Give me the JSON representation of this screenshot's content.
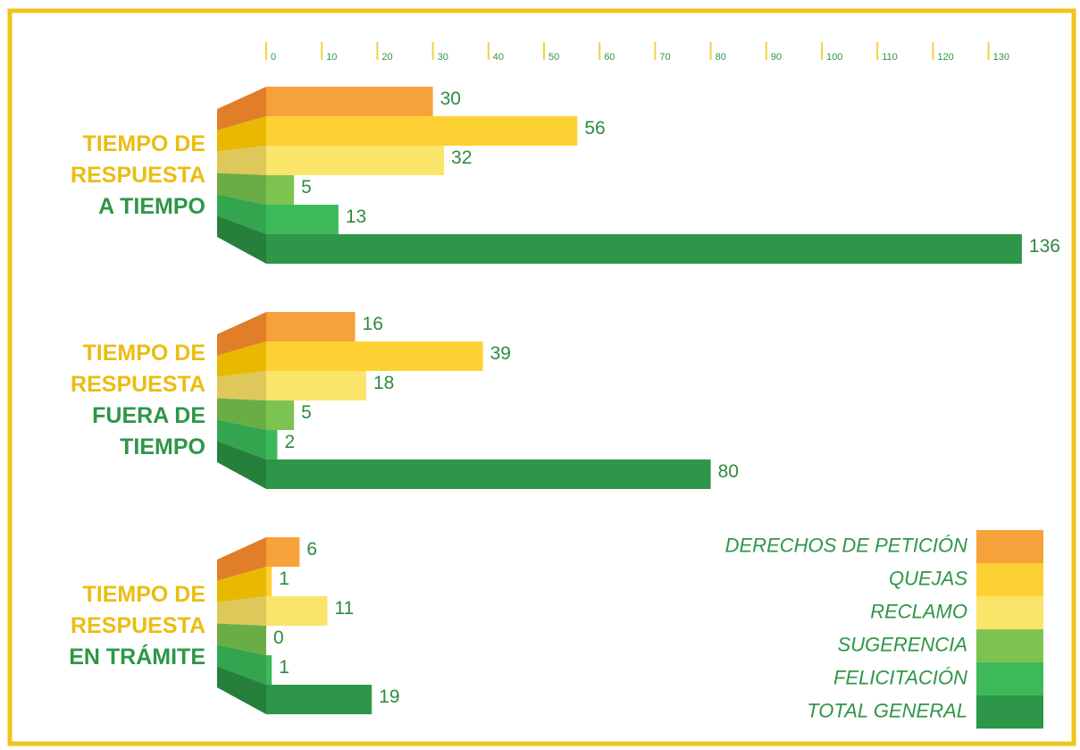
{
  "chart_data": {
    "type": "bar",
    "orientation": "horizontal",
    "category_prefix": "TIEMPO DE RESPUESTA",
    "categories": [
      "A TIEMPO",
      "FUERA DE TIEMPO",
      "EN TRÁMITE"
    ],
    "series": [
      {
        "name": "DERECHOS DE PETICIÓN",
        "color": "#f7a13a",
        "side_color": "#e07e2a",
        "values": [
          30,
          16,
          6
        ]
      },
      {
        "name": "QUEJAS",
        "color": "#fdd133",
        "side_color": "#e9b800",
        "values": [
          56,
          39,
          1
        ]
      },
      {
        "name": "RECLAMO",
        "color": "#fbe46a",
        "side_color": "#dfc85a",
        "values": [
          32,
          18,
          11
        ]
      },
      {
        "name": "SUGERENCIA",
        "color": "#7cc352",
        "side_color": "#6aad45",
        "values": [
          5,
          5,
          0
        ]
      },
      {
        "name": "FELICITACIÓN",
        "color": "#3db95a",
        "side_color": "#34a54f",
        "values": [
          13,
          2,
          1
        ]
      },
      {
        "name": "TOTAL GENERAL",
        "color": "#2e9648",
        "side_color": "#277f3c",
        "values": [
          136,
          80,
          19
        ]
      }
    ],
    "xlim": [
      0,
      140
    ],
    "xticks": [
      0,
      10,
      20,
      30,
      40,
      50,
      60,
      70,
      80,
      90,
      100,
      110,
      120,
      130
    ],
    "legend": "lower right"
  }
}
